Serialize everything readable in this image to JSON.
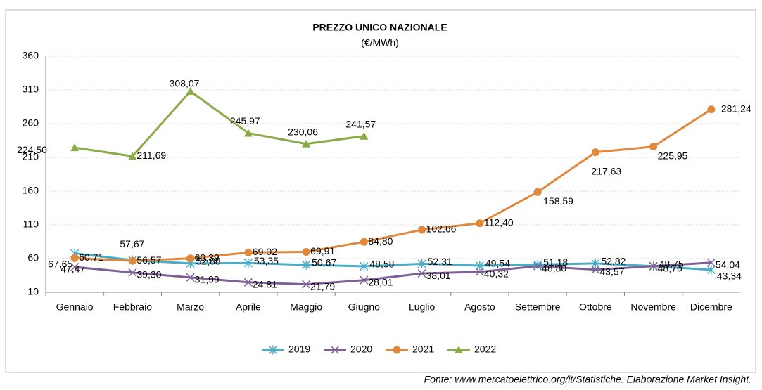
{
  "chart_data": {
    "type": "line",
    "title": "PREZZO UNICO NAZIONALE",
    "subtitle": "(€/MWh)",
    "source": "Fonte: www.mercatoelettrico.org/it/Statistiche. Elaborazione Market Insight.",
    "categories": [
      "Gennaio",
      "Febbraio",
      "Marzo",
      "Aprile",
      "Maggio",
      "Giugno",
      "Luglio",
      "Agosto",
      "Settembre",
      "Ottobre",
      "Novembre",
      "Dicembre"
    ],
    "ylim": [
      10,
      360
    ],
    "yticks": [
      10,
      60,
      110,
      160,
      210,
      260,
      310,
      360
    ],
    "grid": true,
    "legend": "bottom",
    "series": [
      {
        "name": "2019",
        "color": "#4bacc6",
        "marker": "asterisk",
        "values": [
          67.65,
          57.67,
          52.88,
          53.35,
          50.67,
          48.58,
          52.31,
          49.54,
          51.18,
          52.82,
          48.75,
          43.34
        ],
        "value_labels": [
          "67,65",
          "57,67",
          "52,88",
          "53,35",
          "50,67",
          "48,58",
          "52,31",
          "49,54",
          "51,18",
          "52,82",
          "48,75",
          "43,34"
        ]
      },
      {
        "name": "2020",
        "color": "#7f5f98",
        "marker": "x",
        "values": [
          47.47,
          39.3,
          31.99,
          24.81,
          21.79,
          28.01,
          38.01,
          40.32,
          48.8,
          43.57,
          48.76,
          54.04
        ],
        "value_labels": [
          "47,47",
          "39,30",
          "31,99",
          "24,81",
          "21,79",
          "28,01",
          "38,01",
          "40,32",
          "48,80",
          "43,57",
          "48,76",
          "54,04"
        ]
      },
      {
        "name": "2021",
        "color": "#e0883c",
        "marker": "circle",
        "values": [
          60.71,
          56.57,
          60.39,
          69.02,
          69.91,
          84.8,
          102.66,
          112.4,
          158.59,
          217.63,
          225.95,
          281.24
        ],
        "value_labels": [
          "60,71",
          "56,57",
          "60,39",
          "69,02",
          "69,91",
          "84,80",
          "102,66",
          "112,40",
          "158,59",
          "217,63",
          "225,95",
          "281,24"
        ]
      },
      {
        "name": "2022",
        "color": "#8aab48",
        "marker": "triangle",
        "values": [
          224.5,
          211.69,
          308.07,
          245.97,
          230.06,
          241.57,
          null,
          null,
          null,
          null,
          null,
          null
        ],
        "value_labels": [
          "224,50",
          "211,69",
          "308,07",
          "245,97",
          "230,06",
          "241,57",
          null,
          null,
          null,
          null,
          null,
          null
        ]
      }
    ]
  }
}
